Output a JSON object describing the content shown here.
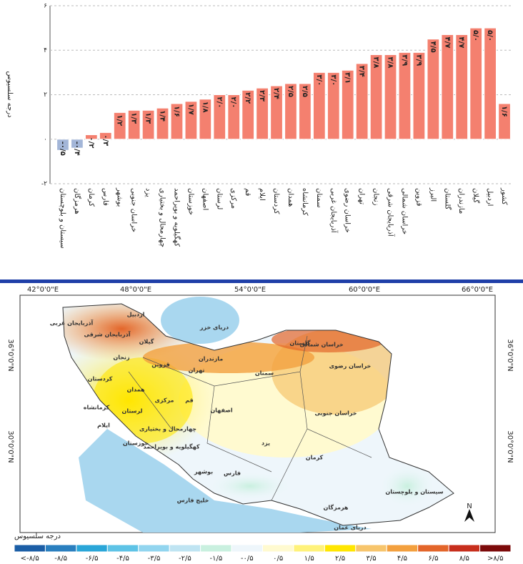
{
  "chart_data": {
    "type": "bar",
    "y_label": "درجه سلسیوس",
    "categories": [
      "سیستان و بلوچستان",
      "هرمزگان",
      "کرمان",
      "فارس",
      "بوشهر",
      "خراسان جنوبی",
      "یزد",
      "چهارمحال و بختیاری",
      "کهگیلویه و بویراحمد",
      "خوزستان",
      "اصفهان",
      "لرستان",
      "مرکزی",
      "قم",
      "ایلام",
      "کردستان",
      "همدان",
      "کرمانشاه",
      "سمنان",
      "آذربایجان غربی",
      "خراسان رضوی",
      "تهران",
      "زنجان",
      "آذربایجان شرقی",
      "خراسان شمالی",
      "قزوین",
      "البرز",
      "گلستان",
      "مازندران",
      "گیلان",
      "اردبیل",
      "کشور"
    ],
    "values": [
      -0.5,
      -0.4,
      0.2,
      0.3,
      1.2,
      1.3,
      1.3,
      1.4,
      1.6,
      1.7,
      1.8,
      2.0,
      2.0,
      2.2,
      2.3,
      2.4,
      2.5,
      2.5,
      3.0,
      3.0,
      3.1,
      3.4,
      3.8,
      3.8,
      3.9,
      3.9,
      4.5,
      4.7,
      4.7,
      5.0,
      5.0,
      1.6
    ],
    "value_labels": [
      "-۰/۵",
      "-۰/۴",
      "۰/۲",
      "۰/۳",
      "۱/۲",
      "۱/۳",
      "۱/۳",
      "۱/۴",
      "۱/۶",
      "۱/۷",
      "۱/۸",
      "۲/۰",
      "۲/۰",
      "۲/۲",
      "۲/۳",
      "۲/۴",
      "۲/۵",
      "۲/۵",
      "۳/۰",
      "۳/۰",
      "۳/۱",
      "۳/۴",
      "۳/۸",
      "۳/۸",
      "۳/۹",
      "۳/۹",
      "۴/۵",
      "۴/۷",
      "۴/۷",
      "۵/۰",
      "۵/۰",
      "۱/۶"
    ],
    "color": "#f4806f",
    "negative_color": "#a3b6d8",
    "grid": true,
    "ylim": [
      -2,
      6
    ],
    "yticks": [
      {
        "value": -2,
        "label": "-۲"
      },
      {
        "value": 0,
        "label": "۰"
      },
      {
        "value": 2,
        "label": "۲"
      },
      {
        "value": 4,
        "label": "۴"
      },
      {
        "value": 6,
        "label": "۶"
      }
    ]
  },
  "map": {
    "lon_labels": [
      "42°0'0\"E",
      "48°0'0\"E",
      "54°0'0\"E",
      "60°0'0\"E",
      "66°0'0\"E"
    ],
    "lat_labels": [
      "36°0'0\"N",
      "30°0'0\"N"
    ],
    "north": "N",
    "places": [
      "دریای خزر",
      "خلیج فارس",
      "دریای عمان",
      "آذربایجان شرقی",
      "آذربایجان غربی",
      "اردبیل",
      "گیلان",
      "مازندران",
      "گلستان",
      "خراسان شمالی",
      "خراسان رضوی",
      "خراسان جنوبی",
      "سمنان",
      "تهران",
      "قزوین",
      "زنجان",
      "کردستان",
      "کرمانشاه",
      "همدان",
      "ایلام",
      "لرستان",
      "مرکزی",
      "قم",
      "اصفهان",
      "چهارمحال و بختیاری",
      "کهگیلویه و بویراحمد",
      "خوزستان",
      "بوشهر",
      "فارس",
      "یزد",
      "کرمان",
      "هرمزگان",
      "سیستان و بلوچستان"
    ],
    "legend": {
      "title": "درجه سلسیوس",
      "labels": [
        "<-۸/۵",
        "-۸/۵",
        "-۶/۵",
        "-۴/۵",
        "-۳/۵",
        "-۲/۵",
        "-۱/۵",
        "-۰/۵",
        "۰/۵",
        "۱/۵",
        "۲/۵",
        "۳/۵",
        "۴/۵",
        "۶/۵",
        "۸/۵",
        ">۸/۵"
      ],
      "colors": [
        "#1b5ea6",
        "#2a7fbf",
        "#2aa6d8",
        "#5ec3e6",
        "#92d5ef",
        "#bfe4f2",
        "#c9f0df",
        "#eef6fb",
        "#fffad0",
        "#fff27a",
        "#ffe600",
        "#f7c56c",
        "#f3a03e",
        "#e3652a",
        "#c72e1c",
        "#7c0a0a"
      ]
    }
  }
}
